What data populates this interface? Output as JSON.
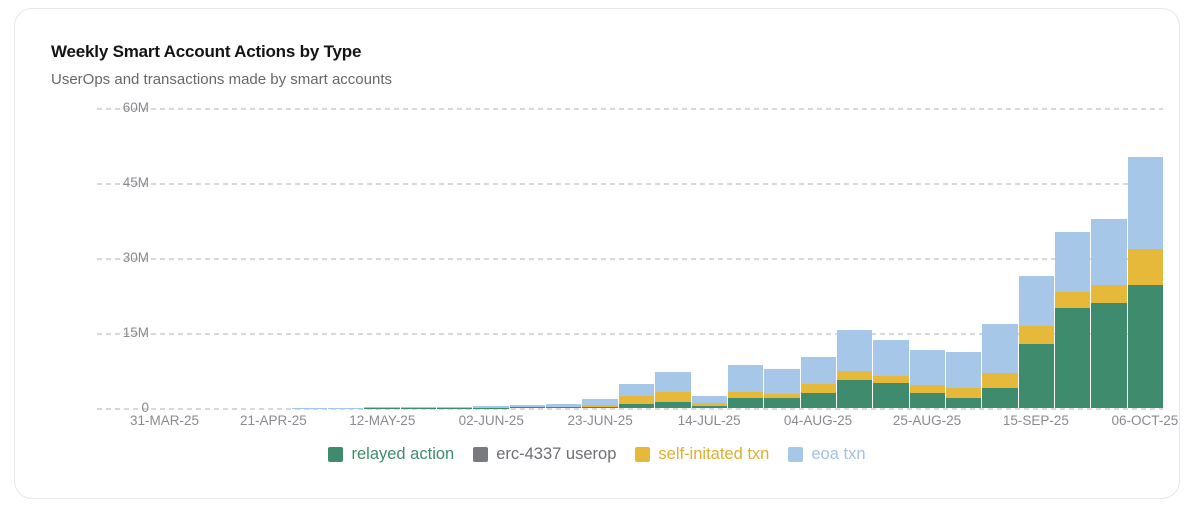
{
  "card": {
    "title": "Weekly Smart Account Actions by Type",
    "subtitle": "UserOps and transactions made by smart accounts"
  },
  "chart_data": {
    "type": "bar",
    "stacked": true,
    "title": "Weekly Smart Account Actions by Type",
    "subtitle": "UserOps and transactions made by smart accounts",
    "xlabel": "",
    "ylabel": "",
    "values_unit": "millions",
    "ylim_millions": [
      0,
      60
    ],
    "y_ticks": [
      {
        "value_millions": 0,
        "label": "0"
      },
      {
        "value_millions": 15,
        "label": "15M"
      },
      {
        "value_millions": 30,
        "label": "30M"
      },
      {
        "value_millions": 45,
        "label": "45M"
      },
      {
        "value_millions": 60,
        "label": "60M"
      }
    ],
    "grid": "dashed-horizontal",
    "legend_position": "bottom",
    "categories": [
      "24-MAR-25",
      "31-MAR-25",
      "07-APR-25",
      "14-APR-25",
      "21-APR-25",
      "28-APR-25",
      "05-MAY-25",
      "12-MAY-25",
      "19-MAY-25",
      "26-MAY-25",
      "02-JUN-25",
      "09-JUN-25",
      "16-JUN-25",
      "23-JUN-25",
      "30-JUN-25",
      "07-JUL-25",
      "14-JUL-25",
      "21-JUL-25",
      "28-JUL-25",
      "04-AUG-25",
      "11-AUG-25",
      "18-AUG-25",
      "25-AUG-25",
      "01-SEP-25",
      "08-SEP-25",
      "15-SEP-25",
      "22-SEP-25",
      "29-SEP-25",
      "06-OCT-25"
    ],
    "x_ticks": [
      {
        "index": 1,
        "label": "31-MAR-25"
      },
      {
        "index": 4,
        "label": "21-APR-25"
      },
      {
        "index": 7,
        "label": "12-MAY-25"
      },
      {
        "index": 10,
        "label": "02-JUN-25"
      },
      {
        "index": 13,
        "label": "23-JUN-25"
      },
      {
        "index": 16,
        "label": "14-JUL-25"
      },
      {
        "index": 19,
        "label": "04-AUG-25"
      },
      {
        "index": 22,
        "label": "25-AUG-25"
      },
      {
        "index": 25,
        "label": "15-SEP-25"
      },
      {
        "index": 28,
        "label": "06-OCT-25"
      }
    ],
    "series": [
      {
        "name": "relayed action",
        "color": "#3E8C6D",
        "label_color": "#3E8C6D",
        "values_millions": [
          0,
          0,
          0,
          0,
          0,
          0,
          0,
          0.02,
          0.03,
          0.05,
          0.08,
          0.12,
          0.15,
          0.15,
          0.9,
          1.3,
          0.5,
          2.1,
          2.0,
          3.1,
          5.6,
          5.0,
          3.0,
          2.1,
          4.0,
          12.9,
          20.1,
          21.0,
          24.7
        ]
      },
      {
        "name": "erc-4337 userop",
        "color": "#797980",
        "label_color": "#6e6e74",
        "values_millions": [
          0,
          0,
          0,
          0,
          0,
          0,
          0,
          0,
          0,
          0,
          0,
          0,
          0,
          0,
          0,
          0,
          0,
          0,
          0,
          0,
          0,
          0,
          0,
          0,
          0,
          0,
          0,
          0,
          0
        ]
      },
      {
        "name": "self-initated txn",
        "color": "#E6B93B",
        "label_color": "#E0AE2F",
        "values_millions": [
          0,
          0,
          0,
          0,
          0,
          0,
          0,
          0,
          0,
          0,
          0.02,
          0.03,
          0.05,
          0.55,
          1.5,
          1.9,
          0.6,
          1.2,
          0.9,
          1.7,
          1.8,
          1.5,
          1.6,
          2.0,
          3.1,
          3.5,
          3.2,
          3.7,
          7.1
        ]
      },
      {
        "name": "eoa txn",
        "color": "#A6C7E8",
        "label_color": "#A3C1E4",
        "values_millions": [
          0,
          0,
          0,
          0,
          0,
          0.05,
          0.08,
          0.13,
          0.17,
          0.25,
          0.3,
          0.45,
          0.55,
          1.1,
          2.4,
          4.1,
          1.3,
          5.3,
          5.0,
          5.4,
          8.3,
          7.1,
          7.1,
          7.2,
          9.8,
          10.1,
          12.0,
          13.1,
          18.4
        ]
      }
    ]
  }
}
